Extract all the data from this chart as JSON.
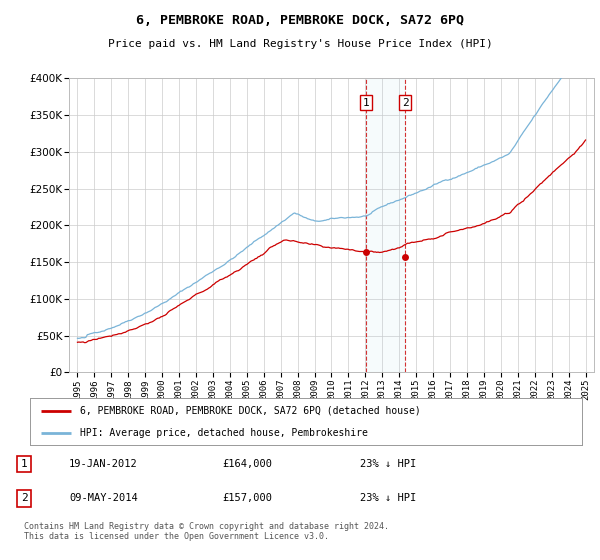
{
  "title": "6, PEMBROKE ROAD, PEMBROKE DOCK, SA72 6PQ",
  "subtitle": "Price paid vs. HM Land Registry's House Price Index (HPI)",
  "legend_line1": "6, PEMBROKE ROAD, PEMBROKE DOCK, SA72 6PQ (detached house)",
  "legend_line2": "HPI: Average price, detached house, Pembrokeshire",
  "footnote": "Contains HM Land Registry data © Crown copyright and database right 2024.\nThis data is licensed under the Open Government Licence v3.0.",
  "transaction1_date": "19-JAN-2012",
  "transaction1_price": "£164,000",
  "transaction1_hpi": "23% ↓ HPI",
  "transaction2_date": "09-MAY-2014",
  "transaction2_price": "£157,000",
  "transaction2_hpi": "23% ↓ HPI",
  "vline1_x": 2012.05,
  "vline2_x": 2014.36,
  "marker1_y": 164000,
  "marker2_y": 157000,
  "ylim": [
    0,
    400000
  ],
  "xlim": [
    1994.5,
    2025.5
  ],
  "hpi_color": "#7ab4d8",
  "price_color": "#cc0000",
  "vline_color": "#cc0000",
  "background_color": "#ffffff",
  "grid_color": "#cccccc"
}
